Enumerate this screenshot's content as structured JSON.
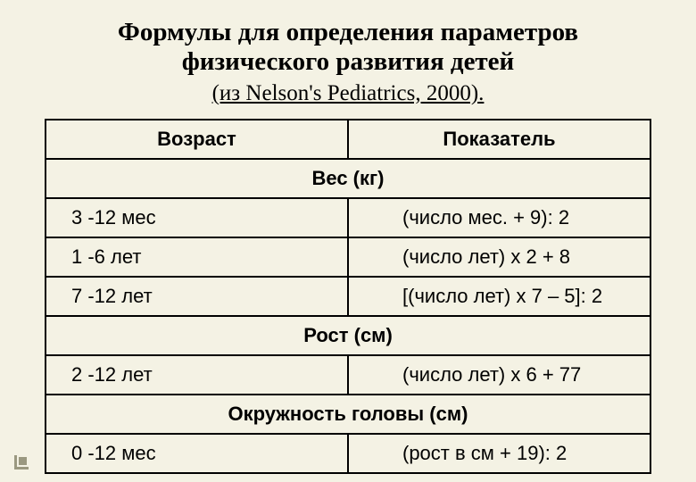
{
  "title_line1": "Формулы для определения параметров",
  "title_line2": "физического развития детей",
  "subtitle": "(из Nelson's Pediatrics, 2000).",
  "table": {
    "header_age": "Возраст",
    "header_indicator": "Показатель",
    "section_weight": "Вес (кг)",
    "section_height": "Рост (см)",
    "section_head": "Окружность головы (см)",
    "rows": {
      "weight1_age": "3 -12 мес",
      "weight1_formula": "(число мес. + 9): 2",
      "weight2_age": "1 -6 лет",
      "weight2_formula": "(число лет) x 2 + 8",
      "weight3_age": "7 -12 лет",
      "weight3_formula": "[(число лет) x 7 – 5]: 2",
      "height1_age": "2 -12 лет",
      "height1_formula": "(число лет) x 6 + 77",
      "head1_age": "0 -12 мес",
      "head1_formula": "(рост в см + 19): 2"
    }
  },
  "styling": {
    "background_color": "#f4f2e4",
    "border_color": "#000000",
    "text_color": "#000000",
    "title_fontsize": 29,
    "subtitle_fontsize": 25,
    "cell_fontsize": 22,
    "title_font": "Times New Roman",
    "body_font": "Arial"
  }
}
